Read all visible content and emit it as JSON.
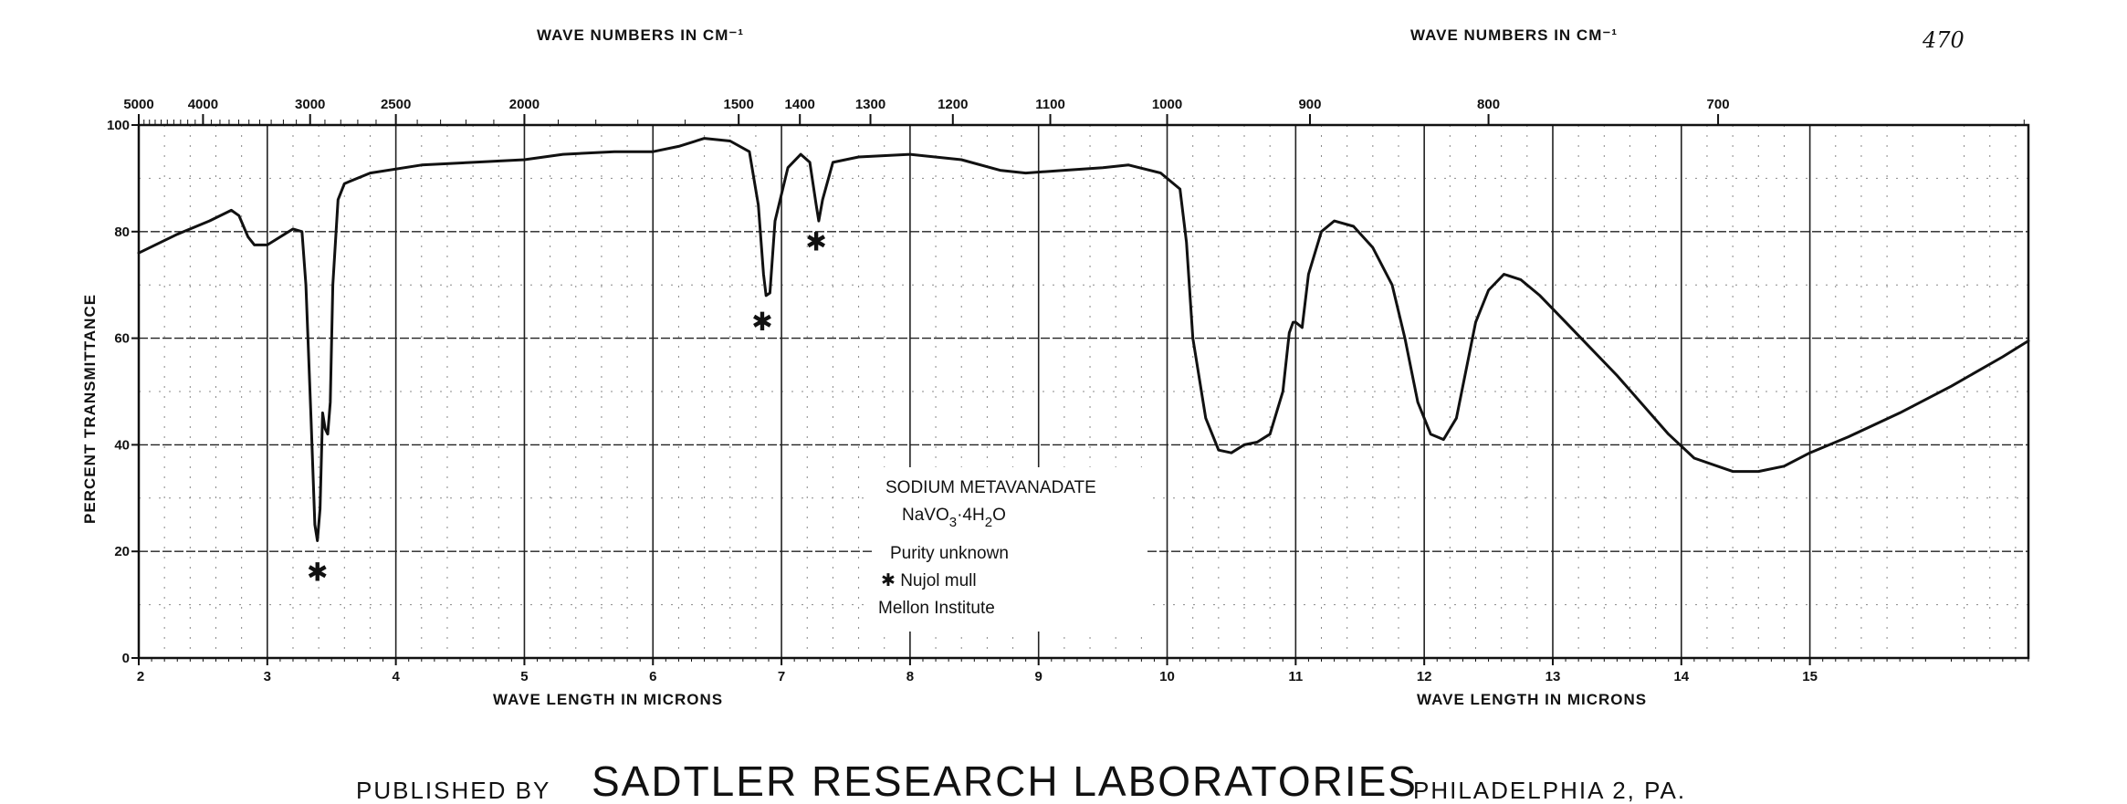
{
  "chart_data": {
    "type": "line",
    "title": "",
    "top_axis_label_left": "WAVE NUMBERS IN CM⁻¹",
    "top_axis_label_right": "WAVE NUMBERS IN CM⁻¹",
    "bottom_axis_label_left": "WAVE LENGTH IN MICRONS",
    "bottom_axis_label_right": "WAVE LENGTH IN MICRONS",
    "ylabel": "PERCENT TRANSMITTANCE",
    "xlim": [
      2,
      16.7
    ],
    "ylim": [
      0,
      100
    ],
    "x_ticks": [
      2,
      3,
      4,
      5,
      6,
      7,
      8,
      9,
      10,
      11,
      12,
      13,
      14,
      15
    ],
    "x_tick_labels": [
      "2",
      "3",
      "4",
      "5",
      "6",
      "7",
      "8",
      "9",
      "10",
      "11",
      "12",
      "13",
      "14",
      "15"
    ],
    "y_ticks": [
      0,
      20,
      40,
      60,
      80,
      100
    ],
    "y_tick_labels": [
      "0",
      "20",
      "40",
      "60",
      "80",
      "100"
    ],
    "top_ticks": [
      {
        "label": "5000",
        "micron": 2.0
      },
      {
        "label": "4000",
        "micron": 2.5
      },
      {
        "label": "3000",
        "micron": 3.333
      },
      {
        "label": "2500",
        "micron": 4.0
      },
      {
        "label": "2000",
        "micron": 5.0
      },
      {
        "label": "1500",
        "micron": 6.667
      },
      {
        "label": "1400",
        "micron": 7.143
      },
      {
        "label": "1300",
        "micron": 7.692
      },
      {
        "label": "1200",
        "micron": 8.333
      },
      {
        "label": "1100",
        "micron": 9.091
      },
      {
        "label": "1000",
        "micron": 10.0
      },
      {
        "label": "900",
        "micron": 11.111
      },
      {
        "label": "800",
        "micron": 12.5
      },
      {
        "label": "700",
        "micron": 14.286
      }
    ],
    "grid": true,
    "series": [
      {
        "color": "#111111",
        "points": [
          [
            2.0,
            76
          ],
          [
            2.3,
            79.5
          ],
          [
            2.55,
            82
          ],
          [
            2.72,
            84
          ],
          [
            2.78,
            83
          ],
          [
            2.85,
            79
          ],
          [
            2.9,
            77.5
          ],
          [
            3.0,
            77.5
          ],
          [
            3.1,
            79
          ],
          [
            3.2,
            80.5
          ],
          [
            3.27,
            80
          ],
          [
            3.3,
            70
          ],
          [
            3.34,
            45
          ],
          [
            3.37,
            25
          ],
          [
            3.39,
            22
          ],
          [
            3.41,
            28
          ],
          [
            3.43,
            46
          ],
          [
            3.45,
            43
          ],
          [
            3.47,
            42
          ],
          [
            3.49,
            48
          ],
          [
            3.51,
            70
          ],
          [
            3.55,
            86
          ],
          [
            3.6,
            89
          ],
          [
            3.8,
            91
          ],
          [
            4.2,
            92.5
          ],
          [
            4.6,
            93
          ],
          [
            5.0,
            93.5
          ],
          [
            5.3,
            94.5
          ],
          [
            5.7,
            95
          ],
          [
            6.0,
            95
          ],
          [
            6.2,
            96
          ],
          [
            6.4,
            97.5
          ],
          [
            6.6,
            97
          ],
          [
            6.75,
            95
          ],
          [
            6.82,
            85
          ],
          [
            6.86,
            72
          ],
          [
            6.88,
            68
          ],
          [
            6.91,
            68.5
          ],
          [
            6.95,
            82
          ],
          [
            7.05,
            92
          ],
          [
            7.15,
            94.5
          ],
          [
            7.22,
            93
          ],
          [
            7.27,
            85
          ],
          [
            7.29,
            82
          ],
          [
            7.32,
            86
          ],
          [
            7.4,
            93
          ],
          [
            7.6,
            94
          ],
          [
            8.0,
            94.5
          ],
          [
            8.4,
            93.5
          ],
          [
            8.7,
            91.5
          ],
          [
            8.9,
            91
          ],
          [
            9.2,
            91.5
          ],
          [
            9.5,
            92
          ],
          [
            9.7,
            92.5
          ],
          [
            9.95,
            91
          ],
          [
            10.1,
            88
          ],
          [
            10.15,
            78
          ],
          [
            10.2,
            60
          ],
          [
            10.3,
            45
          ],
          [
            10.4,
            39
          ],
          [
            10.5,
            38.5
          ],
          [
            10.6,
            40
          ],
          [
            10.7,
            40.5
          ],
          [
            10.8,
            42
          ],
          [
            10.9,
            50
          ],
          [
            10.95,
            61
          ],
          [
            10.98,
            63
          ],
          [
            11.0,
            63
          ],
          [
            11.05,
            62
          ],
          [
            11.1,
            72
          ],
          [
            11.2,
            80
          ],
          [
            11.3,
            82
          ],
          [
            11.45,
            81
          ],
          [
            11.6,
            77
          ],
          [
            11.75,
            70
          ],
          [
            11.85,
            60
          ],
          [
            11.95,
            48
          ],
          [
            12.05,
            42
          ],
          [
            12.15,
            41
          ],
          [
            12.25,
            45
          ],
          [
            12.4,
            63
          ],
          [
            12.5,
            69
          ],
          [
            12.62,
            72
          ],
          [
            12.75,
            71
          ],
          [
            12.9,
            68
          ],
          [
            13.1,
            63
          ],
          [
            13.5,
            53
          ],
          [
            13.9,
            42
          ],
          [
            14.1,
            37.5
          ],
          [
            14.4,
            35
          ],
          [
            14.6,
            35
          ],
          [
            14.8,
            36
          ],
          [
            15.0,
            38.5
          ],
          [
            15.3,
            41.5
          ],
          [
            15.7,
            46
          ],
          [
            16.1,
            51
          ],
          [
            16.5,
            56.5
          ],
          [
            16.7,
            59.5
          ]
        ]
      }
    ],
    "markers": [
      {
        "symbol": "✱",
        "x": 3.39,
        "y": 16
      },
      {
        "symbol": "✱",
        "x": 6.85,
        "y": 63
      },
      {
        "symbol": "✱",
        "x": 7.27,
        "y": 78
      }
    ],
    "annotation": {
      "line1": "SODIUM METAVANADATE",
      "line2_prefix": "NaVO",
      "line2_sub": "3",
      "line2_mid": "·4H",
      "line2_sub2": "2",
      "line2_suffix": "O",
      "line3": "Purity unknown",
      "line4": "✱ Nujol mull",
      "line5": "Mellon Institute"
    },
    "sample_number": "470"
  },
  "footer": {
    "prefix": "PUBLISHED BY",
    "name": "SADTLER RESEARCH LABORATORIES",
    "suffix": "PHILADELPHIA 2, PA."
  }
}
